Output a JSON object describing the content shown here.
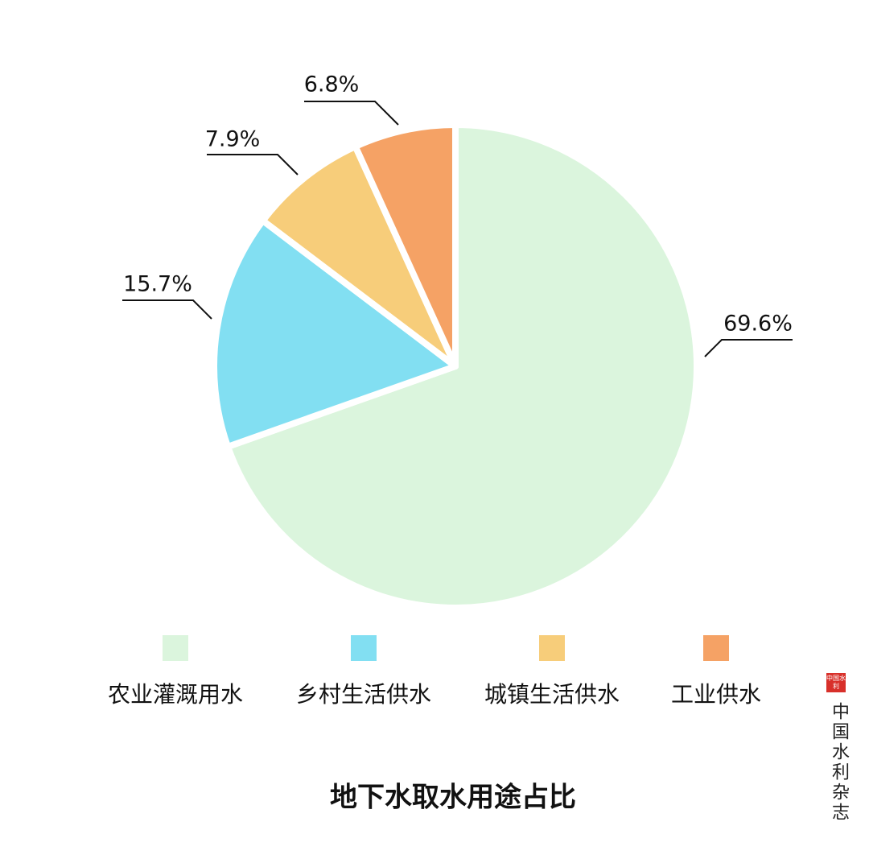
{
  "chart_data": {
    "type": "pie",
    "title": "地下水取水用途占比",
    "categories": [
      "农业灌溉用水",
      "乡村生活供水",
      "城镇生活供水",
      "工业供水"
    ],
    "values": [
      69.6,
      15.7,
      7.9,
      6.8
    ],
    "value_labels": [
      "69.6%",
      "15.7%",
      "7.9%",
      "6.8%"
    ],
    "colors": [
      "#dbf5dd",
      "#82dff2",
      "#f7cd7a",
      "#f5a265"
    ]
  },
  "watermark": {
    "seal": "中国水利",
    "text": "中国水利杂志"
  }
}
